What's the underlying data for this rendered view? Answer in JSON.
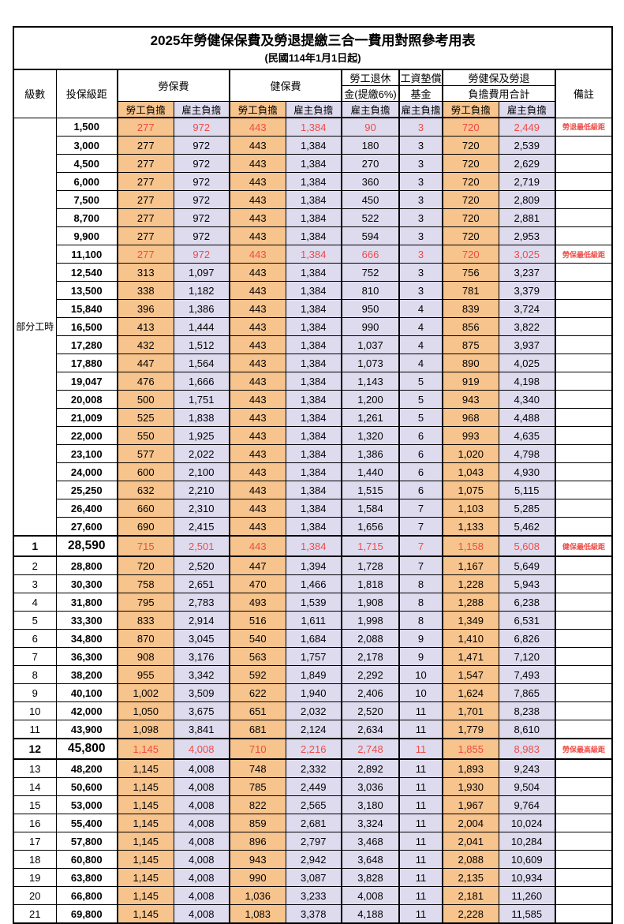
{
  "title": "2025年勞健保保費及勞退提繳三合一費用對照參考用表",
  "subtitle": "(民國114年1月1日起)",
  "header": {
    "level": "級數",
    "bracket": "投保級距",
    "labor_ins": "勞保費",
    "health_ins": "健保費",
    "pension_line1": "勞工退休",
    "pension_line2": "金(提繳6%)",
    "wage_fund_line1": "工資墊償",
    "wage_fund_line2": "基金",
    "total_line1": "勞健保及勞退",
    "total_line2": "負擔費用合計",
    "remark": "備註",
    "employee": "勞工負擔",
    "employer": "雇主負擔"
  },
  "part_time_label": "部分工時",
  "colors": {
    "employee_bg": "#F7C48D",
    "employer_bg": "#DFDBEF",
    "highlight_red": "#F04B46",
    "border": "#000000"
  },
  "rows": [
    {
      "level": "",
      "bracket": "1,500",
      "v": [
        "277",
        "972",
        "443",
        "1,384",
        "90",
        "3",
        "720",
        "2,449"
      ],
      "remark": "勞退最低級距",
      "red": true,
      "emph": false
    },
    {
      "level": "",
      "bracket": "3,000",
      "v": [
        "277",
        "972",
        "443",
        "1,384",
        "180",
        "3",
        "720",
        "2,539"
      ],
      "remark": "",
      "red": false,
      "emph": false
    },
    {
      "level": "",
      "bracket": "4,500",
      "v": [
        "277",
        "972",
        "443",
        "1,384",
        "270",
        "3",
        "720",
        "2,629"
      ],
      "remark": "",
      "red": false,
      "emph": false
    },
    {
      "level": "",
      "bracket": "6,000",
      "v": [
        "277",
        "972",
        "443",
        "1,384",
        "360",
        "3",
        "720",
        "2,719"
      ],
      "remark": "",
      "red": false,
      "emph": false
    },
    {
      "level": "",
      "bracket": "7,500",
      "v": [
        "277",
        "972",
        "443",
        "1,384",
        "450",
        "3",
        "720",
        "2,809"
      ],
      "remark": "",
      "red": false,
      "emph": false
    },
    {
      "level": "",
      "bracket": "8,700",
      "v": [
        "277",
        "972",
        "443",
        "1,384",
        "522",
        "3",
        "720",
        "2,881"
      ],
      "remark": "",
      "red": false,
      "emph": false
    },
    {
      "level": "",
      "bracket": "9,900",
      "v": [
        "277",
        "972",
        "443",
        "1,384",
        "594",
        "3",
        "720",
        "2,953"
      ],
      "remark": "",
      "red": false,
      "emph": false
    },
    {
      "level": "",
      "bracket": "11,100",
      "v": [
        "277",
        "972",
        "443",
        "1,384",
        "666",
        "3",
        "720",
        "3,025"
      ],
      "remark": "勞保最低級距",
      "red": true,
      "emph": false
    },
    {
      "level": "",
      "bracket": "12,540",
      "v": [
        "313",
        "1,097",
        "443",
        "1,384",
        "752",
        "3",
        "756",
        "3,237"
      ],
      "remark": "",
      "red": false,
      "emph": false
    },
    {
      "level": "",
      "bracket": "13,500",
      "v": [
        "338",
        "1,182",
        "443",
        "1,384",
        "810",
        "3",
        "781",
        "3,379"
      ],
      "remark": "",
      "red": false,
      "emph": false
    },
    {
      "level": "",
      "bracket": "15,840",
      "v": [
        "396",
        "1,386",
        "443",
        "1,384",
        "950",
        "4",
        "839",
        "3,724"
      ],
      "remark": "",
      "red": false,
      "emph": false
    },
    {
      "level": "",
      "bracket": "16,500",
      "v": [
        "413",
        "1,444",
        "443",
        "1,384",
        "990",
        "4",
        "856",
        "3,822"
      ],
      "remark": "",
      "red": false,
      "emph": false
    },
    {
      "level": "",
      "bracket": "17,280",
      "v": [
        "432",
        "1,512",
        "443",
        "1,384",
        "1,037",
        "4",
        "875",
        "3,937"
      ],
      "remark": "",
      "red": false,
      "emph": false
    },
    {
      "level": "",
      "bracket": "17,880",
      "v": [
        "447",
        "1,564",
        "443",
        "1,384",
        "1,073",
        "4",
        "890",
        "4,025"
      ],
      "remark": "",
      "red": false,
      "emph": false
    },
    {
      "level": "",
      "bracket": "19,047",
      "v": [
        "476",
        "1,666",
        "443",
        "1,384",
        "1,143",
        "5",
        "919",
        "4,198"
      ],
      "remark": "",
      "red": false,
      "emph": false
    },
    {
      "level": "",
      "bracket": "20,008",
      "v": [
        "500",
        "1,751",
        "443",
        "1,384",
        "1,200",
        "5",
        "943",
        "4,340"
      ],
      "remark": "",
      "red": false,
      "emph": false
    },
    {
      "level": "",
      "bracket": "21,009",
      "v": [
        "525",
        "1,838",
        "443",
        "1,384",
        "1,261",
        "5",
        "968",
        "4,488"
      ],
      "remark": "",
      "red": false,
      "emph": false
    },
    {
      "level": "",
      "bracket": "22,000",
      "v": [
        "550",
        "1,925",
        "443",
        "1,384",
        "1,320",
        "6",
        "993",
        "4,635"
      ],
      "remark": "",
      "red": false,
      "emph": false
    },
    {
      "level": "",
      "bracket": "23,100",
      "v": [
        "577",
        "2,022",
        "443",
        "1,384",
        "1,386",
        "6",
        "1,020",
        "4,798"
      ],
      "remark": "",
      "red": false,
      "emph": false
    },
    {
      "level": "",
      "bracket": "24,000",
      "v": [
        "600",
        "2,100",
        "443",
        "1,384",
        "1,440",
        "6",
        "1,043",
        "4,930"
      ],
      "remark": "",
      "red": false,
      "emph": false
    },
    {
      "level": "",
      "bracket": "25,250",
      "v": [
        "632",
        "2,210",
        "443",
        "1,384",
        "1,515",
        "6",
        "1,075",
        "5,115"
      ],
      "remark": "",
      "red": false,
      "emph": false
    },
    {
      "level": "",
      "bracket": "26,400",
      "v": [
        "660",
        "2,310",
        "443",
        "1,384",
        "1,584",
        "7",
        "1,103",
        "5,285"
      ],
      "remark": "",
      "red": false,
      "emph": false
    },
    {
      "level": "",
      "bracket": "27,600",
      "v": [
        "690",
        "2,415",
        "443",
        "1,384",
        "1,656",
        "7",
        "1,133",
        "5,462"
      ],
      "remark": "",
      "red": false,
      "emph": false
    },
    {
      "level": "1",
      "bracket": "28,590",
      "v": [
        "715",
        "2,501",
        "443",
        "1,384",
        "1,715",
        "7",
        "1,158",
        "5,608"
      ],
      "remark": "健保最低級距",
      "red": true,
      "emph": true
    },
    {
      "level": "2",
      "bracket": "28,800",
      "v": [
        "720",
        "2,520",
        "447",
        "1,394",
        "1,728",
        "7",
        "1,167",
        "5,649"
      ],
      "remark": "",
      "red": false,
      "emph": false
    },
    {
      "level": "3",
      "bracket": "30,300",
      "v": [
        "758",
        "2,651",
        "470",
        "1,466",
        "1,818",
        "8",
        "1,228",
        "5,943"
      ],
      "remark": "",
      "red": false,
      "emph": false
    },
    {
      "level": "4",
      "bracket": "31,800",
      "v": [
        "795",
        "2,783",
        "493",
        "1,539",
        "1,908",
        "8",
        "1,288",
        "6,238"
      ],
      "remark": "",
      "red": false,
      "emph": false
    },
    {
      "level": "5",
      "bracket": "33,300",
      "v": [
        "833",
        "2,914",
        "516",
        "1,611",
        "1,998",
        "8",
        "1,349",
        "6,531"
      ],
      "remark": "",
      "red": false,
      "emph": false
    },
    {
      "level": "6",
      "bracket": "34,800",
      "v": [
        "870",
        "3,045",
        "540",
        "1,684",
        "2,088",
        "9",
        "1,410",
        "6,826"
      ],
      "remark": "",
      "red": false,
      "emph": false
    },
    {
      "level": "7",
      "bracket": "36,300",
      "v": [
        "908",
        "3,176",
        "563",
        "1,757",
        "2,178",
        "9",
        "1,471",
        "7,120"
      ],
      "remark": "",
      "red": false,
      "emph": false
    },
    {
      "level": "8",
      "bracket": "38,200",
      "v": [
        "955",
        "3,342",
        "592",
        "1,849",
        "2,292",
        "10",
        "1,547",
        "7,493"
      ],
      "remark": "",
      "red": false,
      "emph": false
    },
    {
      "level": "9",
      "bracket": "40,100",
      "v": [
        "1,002",
        "3,509",
        "622",
        "1,940",
        "2,406",
        "10",
        "1,624",
        "7,865"
      ],
      "remark": "",
      "red": false,
      "emph": false
    },
    {
      "level": "10",
      "bracket": "42,000",
      "v": [
        "1,050",
        "3,675",
        "651",
        "2,032",
        "2,520",
        "11",
        "1,701",
        "8,238"
      ],
      "remark": "",
      "red": false,
      "emph": false
    },
    {
      "level": "11",
      "bracket": "43,900",
      "v": [
        "1,098",
        "3,841",
        "681",
        "2,124",
        "2,634",
        "11",
        "1,779",
        "8,610"
      ],
      "remark": "",
      "red": false,
      "emph": false
    },
    {
      "level": "12",
      "bracket": "45,800",
      "v": [
        "1,145",
        "4,008",
        "710",
        "2,216",
        "2,748",
        "11",
        "1,855",
        "8,983"
      ],
      "remark": "勞保最高級距",
      "red": true,
      "emph": true
    },
    {
      "level": "13",
      "bracket": "48,200",
      "v": [
        "1,145",
        "4,008",
        "748",
        "2,332",
        "2,892",
        "11",
        "1,893",
        "9,243"
      ],
      "remark": "",
      "red": false,
      "emph": false
    },
    {
      "level": "14",
      "bracket": "50,600",
      "v": [
        "1,145",
        "4,008",
        "785",
        "2,449",
        "3,036",
        "11",
        "1,930",
        "9,504"
      ],
      "remark": "",
      "red": false,
      "emph": false
    },
    {
      "level": "15",
      "bracket": "53,000",
      "v": [
        "1,145",
        "4,008",
        "822",
        "2,565",
        "3,180",
        "11",
        "1,967",
        "9,764"
      ],
      "remark": "",
      "red": false,
      "emph": false
    },
    {
      "level": "16",
      "bracket": "55,400",
      "v": [
        "1,145",
        "4,008",
        "859",
        "2,681",
        "3,324",
        "11",
        "2,004",
        "10,024"
      ],
      "remark": "",
      "red": false,
      "emph": false
    },
    {
      "level": "17",
      "bracket": "57,800",
      "v": [
        "1,145",
        "4,008",
        "896",
        "2,797",
        "3,468",
        "11",
        "2,041",
        "10,284"
      ],
      "remark": "",
      "red": false,
      "emph": false
    },
    {
      "level": "18",
      "bracket": "60,800",
      "v": [
        "1,145",
        "4,008",
        "943",
        "2,942",
        "3,648",
        "11",
        "2,088",
        "10,609"
      ],
      "remark": "",
      "red": false,
      "emph": false
    },
    {
      "level": "19",
      "bracket": "63,800",
      "v": [
        "1,145",
        "4,008",
        "990",
        "3,087",
        "3,828",
        "11",
        "2,135",
        "10,934"
      ],
      "remark": "",
      "red": false,
      "emph": false
    },
    {
      "level": "20",
      "bracket": "66,800",
      "v": [
        "1,145",
        "4,008",
        "1,036",
        "3,233",
        "4,008",
        "11",
        "2,181",
        "11,260"
      ],
      "remark": "",
      "red": false,
      "emph": false
    },
    {
      "level": "21",
      "bracket": "69,800",
      "v": [
        "1,145",
        "4,008",
        "1,083",
        "3,378",
        "4,188",
        "11",
        "2,228",
        "11,585"
      ],
      "remark": "",
      "red": false,
      "emph": false
    }
  ]
}
